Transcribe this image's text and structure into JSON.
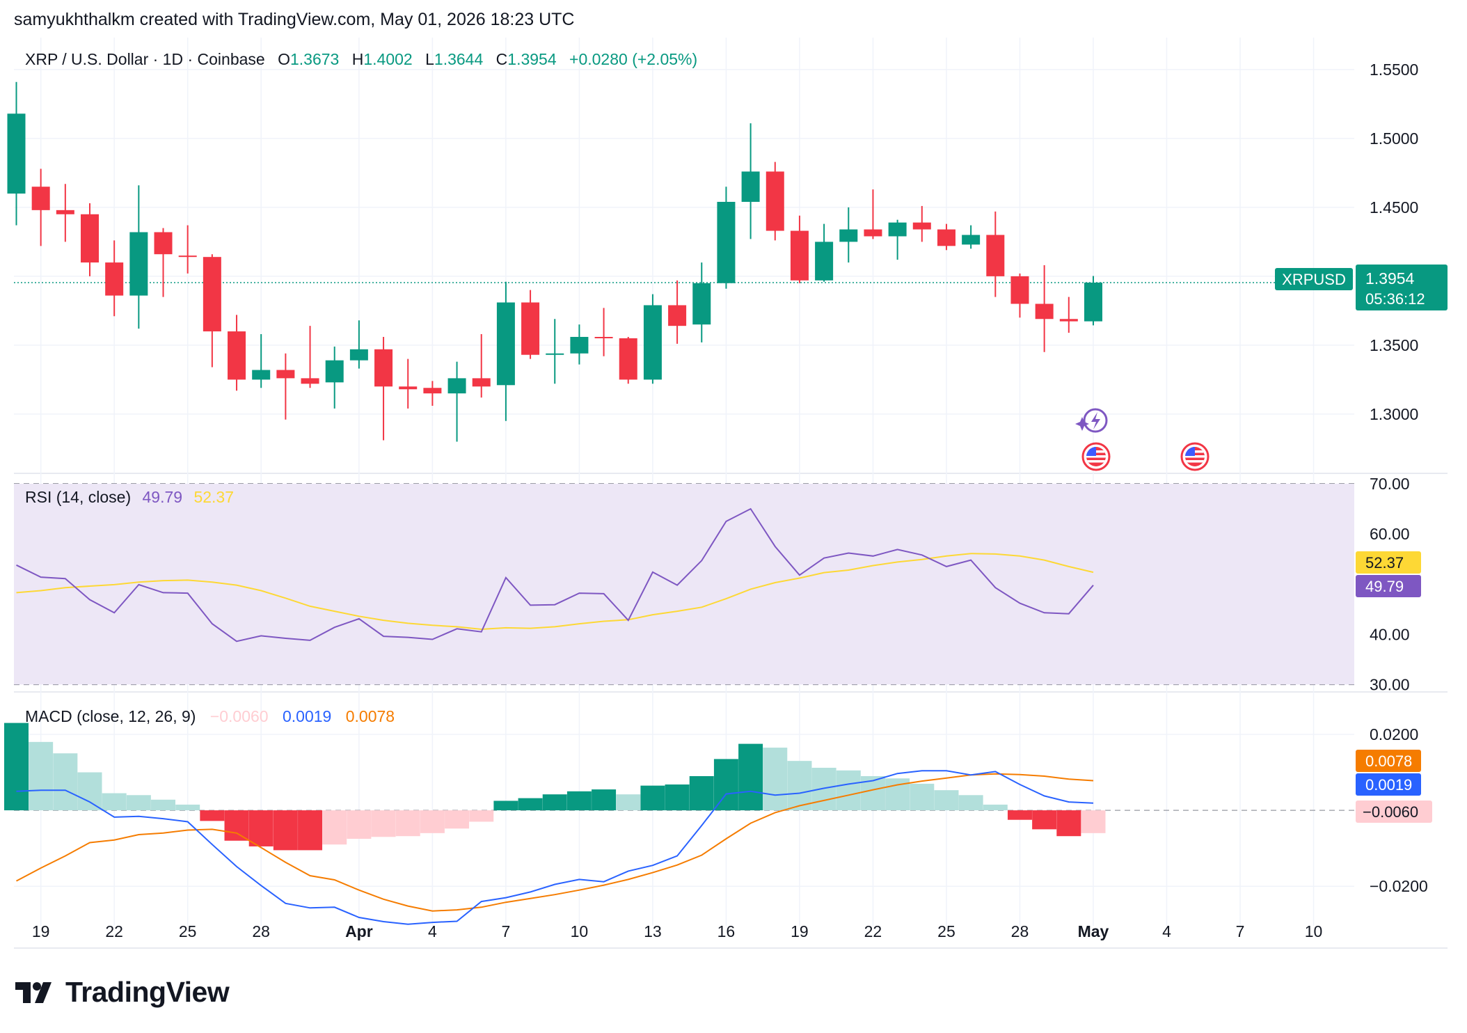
{
  "header": {
    "attribution": "samyukhthalkm created with TradingView.com, May 01, 2026 18:23 UTC"
  },
  "footer": {
    "brand": "TradingView"
  },
  "colors": {
    "up": "#089981",
    "down": "#f23645",
    "up_light": "#b2dfdb",
    "down_light": "#ffcdd2",
    "rsi": "#7e57c2",
    "rsi_ma": "#fdd835",
    "macd": "#2962ff",
    "signal": "#f57c00",
    "rsi_band": "#ede7f6"
  },
  "chart_data": {
    "type": "candlestick",
    "symbol_title": "XRP / U.S. Dollar · 1D · Coinbase",
    "ohlc_labels": {
      "o": "O",
      "h": "H",
      "l": "L",
      "c": "C"
    },
    "ohlc_values": {
      "o": "1.3673",
      "h": "1.4002",
      "l": "1.3644",
      "c": "1.3954",
      "change": "+0.0280 (+2.05%)"
    },
    "price_label": {
      "symbol": "XRPUSD",
      "price": "1.3954",
      "countdown": "05:36:12",
      "value": 1.3954
    },
    "price_axis": {
      "ticks": [
        "1.5500",
        "1.5000",
        "1.4500",
        "1.3500",
        "1.3000"
      ],
      "tick_values": [
        1.55,
        1.5,
        1.45,
        1.35,
        1.3
      ],
      "ylim": [
        1.258,
        1.5732
      ]
    },
    "x_axis": {
      "labels": [
        "19",
        "22",
        "25",
        "28",
        "Apr",
        "4",
        "7",
        "10",
        "13",
        "16",
        "19",
        "22",
        "25",
        "28",
        "May",
        "4",
        "7",
        "10"
      ],
      "label_index": [
        1,
        4,
        7,
        10,
        14,
        17,
        20,
        23,
        26,
        29,
        32,
        35,
        38,
        41,
        44,
        47,
        50,
        53
      ],
      "bold": [
        "Apr",
        "May"
      ]
    },
    "candles": [
      {
        "date": "03-18",
        "o": 1.46,
        "h": 1.541,
        "l": 1.437,
        "c": 1.518
      },
      {
        "date": "03-19",
        "o": 1.465,
        "h": 1.478,
        "l": 1.422,
        "c": 1.448
      },
      {
        "date": "03-20",
        "o": 1.448,
        "h": 1.467,
        "l": 1.425,
        "c": 1.445
      },
      {
        "date": "03-21",
        "o": 1.445,
        "h": 1.453,
        "l": 1.4,
        "c": 1.41
      },
      {
        "date": "03-22",
        "o": 1.41,
        "h": 1.426,
        "l": 1.371,
        "c": 1.386
      },
      {
        "date": "03-23",
        "o": 1.386,
        "h": 1.466,
        "l": 1.362,
        "c": 1.432
      },
      {
        "date": "03-24",
        "o": 1.432,
        "h": 1.435,
        "l": 1.385,
        "c": 1.416
      },
      {
        "date": "03-25",
        "o": 1.415,
        "h": 1.437,
        "l": 1.402,
        "c": 1.414
      },
      {
        "date": "03-26",
        "o": 1.414,
        "h": 1.416,
        "l": 1.334,
        "c": 1.36
      },
      {
        "date": "03-27",
        "o": 1.36,
        "h": 1.372,
        "l": 1.317,
        "c": 1.325
      },
      {
        "date": "03-28",
        "o": 1.325,
        "h": 1.358,
        "l": 1.319,
        "c": 1.332
      },
      {
        "date": "03-29",
        "o": 1.332,
        "h": 1.344,
        "l": 1.296,
        "c": 1.326
      },
      {
        "date": "03-30",
        "o": 1.326,
        "h": 1.364,
        "l": 1.319,
        "c": 1.322
      },
      {
        "date": "03-31",
        "o": 1.323,
        "h": 1.349,
        "l": 1.304,
        "c": 1.339
      },
      {
        "date": "04-01",
        "o": 1.339,
        "h": 1.368,
        "l": 1.333,
        "c": 1.347
      },
      {
        "date": "04-02",
        "o": 1.347,
        "h": 1.356,
        "l": 1.281,
        "c": 1.32
      },
      {
        "date": "04-03",
        "o": 1.32,
        "h": 1.34,
        "l": 1.304,
        "c": 1.318
      },
      {
        "date": "04-04",
        "o": 1.319,
        "h": 1.324,
        "l": 1.306,
        "c": 1.315
      },
      {
        "date": "04-05",
        "o": 1.315,
        "h": 1.338,
        "l": 1.28,
        "c": 1.326
      },
      {
        "date": "04-06",
        "o": 1.326,
        "h": 1.358,
        "l": 1.312,
        "c": 1.32
      },
      {
        "date": "04-07",
        "o": 1.321,
        "h": 1.396,
        "l": 1.295,
        "c": 1.381
      },
      {
        "date": "04-08",
        "o": 1.381,
        "h": 1.39,
        "l": 1.34,
        "c": 1.343
      },
      {
        "date": "04-09",
        "o": 1.343,
        "h": 1.369,
        "l": 1.322,
        "c": 1.344
      },
      {
        "date": "04-10",
        "o": 1.344,
        "h": 1.365,
        "l": 1.336,
        "c": 1.356
      },
      {
        "date": "04-11",
        "o": 1.356,
        "h": 1.377,
        "l": 1.342,
        "c": 1.355
      },
      {
        "date": "04-12",
        "o": 1.355,
        "h": 1.356,
        "l": 1.322,
        "c": 1.325
      },
      {
        "date": "04-13",
        "o": 1.325,
        "h": 1.387,
        "l": 1.322,
        "c": 1.379
      },
      {
        "date": "04-14",
        "o": 1.379,
        "h": 1.397,
        "l": 1.351,
        "c": 1.364
      },
      {
        "date": "04-15",
        "o": 1.365,
        "h": 1.41,
        "l": 1.352,
        "c": 1.395
      },
      {
        "date": "04-16",
        "o": 1.395,
        "h": 1.465,
        "l": 1.391,
        "c": 1.454
      },
      {
        "date": "04-17",
        "o": 1.454,
        "h": 1.511,
        "l": 1.427,
        "c": 1.476
      },
      {
        "date": "04-18",
        "o": 1.476,
        "h": 1.483,
        "l": 1.426,
        "c": 1.433
      },
      {
        "date": "04-19",
        "o": 1.433,
        "h": 1.444,
        "l": 1.395,
        "c": 1.397
      },
      {
        "date": "04-20",
        "o": 1.397,
        "h": 1.438,
        "l": 1.396,
        "c": 1.425
      },
      {
        "date": "04-21",
        "o": 1.425,
        "h": 1.45,
        "l": 1.41,
        "c": 1.434
      },
      {
        "date": "04-22",
        "o": 1.434,
        "h": 1.463,
        "l": 1.427,
        "c": 1.429
      },
      {
        "date": "04-23",
        "o": 1.429,
        "h": 1.441,
        "l": 1.412,
        "c": 1.439
      },
      {
        "date": "04-24",
        "o": 1.439,
        "h": 1.451,
        "l": 1.425,
        "c": 1.434
      },
      {
        "date": "04-25",
        "o": 1.434,
        "h": 1.438,
        "l": 1.419,
        "c": 1.422
      },
      {
        "date": "04-26",
        "o": 1.423,
        "h": 1.437,
        "l": 1.42,
        "c": 1.43
      },
      {
        "date": "04-27",
        "o": 1.43,
        "h": 1.447,
        "l": 1.385,
        "c": 1.4
      },
      {
        "date": "04-28",
        "o": 1.4,
        "h": 1.402,
        "l": 1.37,
        "c": 1.38
      },
      {
        "date": "04-29",
        "o": 1.38,
        "h": 1.408,
        "l": 1.345,
        "c": 1.369
      },
      {
        "date": "04-30",
        "o": 1.369,
        "h": 1.385,
        "l": 1.359,
        "c": 1.3673
      },
      {
        "date": "05-01",
        "o": 1.3673,
        "h": 1.4002,
        "l": 1.3644,
        "c": 1.3954
      }
    ],
    "rsi": {
      "title": "RSI (14, close)",
      "value": "49.79",
      "ma_value": "52.37",
      "ticks": [
        "70.00",
        "60.00",
        "40.00",
        "30.00"
      ],
      "tick_values": [
        70,
        60,
        40,
        30
      ],
      "band": [
        30,
        70
      ],
      "mid": 50,
      "ylim": [
        28.8,
        71.8
      ],
      "values": [
        53.8,
        51.4,
        51.1,
        46.9,
        44.3,
        49.9,
        48.3,
        48.2,
        42.1,
        38.6,
        39.7,
        39.2,
        38.8,
        41.4,
        43.1,
        39.6,
        39.4,
        39.0,
        41.1,
        40.5,
        51.3,
        45.8,
        45.9,
        48.2,
        48.1,
        42.8,
        52.4,
        49.8,
        54.7,
        62.5,
        65.0,
        57.5,
        51.8,
        55.2,
        56.2,
        55.6,
        56.9,
        55.8,
        53.5,
        54.8,
        49.3,
        46.2,
        44.3,
        44.1,
        49.79
      ],
      "ma_values": [
        48.3,
        48.7,
        49.3,
        49.6,
        49.9,
        50.4,
        50.7,
        50.8,
        50.4,
        49.8,
        48.7,
        47.2,
        45.6,
        44.6,
        43.6,
        42.8,
        42.2,
        41.8,
        41.5,
        41.0,
        41.3,
        41.2,
        41.5,
        42.1,
        42.6,
        42.9,
        43.9,
        44.6,
        45.4,
        47.1,
        49.0,
        50.3,
        51.2,
        52.3,
        52.8,
        53.7,
        54.4,
        54.9,
        55.6,
        56.1,
        56.0,
        55.6,
        54.8,
        53.5,
        52.37
      ]
    },
    "macd": {
      "title": "MACD (close, 12, 26, 9)",
      "hist_value": "−0.0060",
      "macd_value": "0.0019",
      "signal_value": "0.0078",
      "ticks": [
        "0.0200",
        "−0.0200"
      ],
      "tick_values": [
        0.02,
        -0.02
      ],
      "ylim": [
        -0.0304,
        0.0308
      ],
      "hist": [
        0.023,
        0.018,
        0.015,
        0.01,
        0.0045,
        0.004,
        0.0028,
        0.0015,
        -0.0028,
        -0.008,
        -0.0095,
        -0.0105,
        -0.0105,
        -0.009,
        -0.0075,
        -0.007,
        -0.0068,
        -0.006,
        -0.0048,
        -0.003,
        0.0025,
        0.0032,
        0.0042,
        0.005,
        0.0055,
        0.0042,
        0.0065,
        0.0068,
        0.009,
        0.0135,
        0.0175,
        0.0165,
        0.013,
        0.0112,
        0.0105,
        0.009,
        0.0084,
        0.007,
        0.0053,
        0.004,
        0.0015,
        -0.0025,
        -0.005,
        -0.0068,
        -0.006
      ],
      "macd": [
        0.005,
        0.0053,
        0.0053,
        0.0022,
        -0.0018,
        -0.0016,
        -0.0022,
        -0.003,
        -0.009,
        -0.0148,
        -0.0198,
        -0.0245,
        -0.0257,
        -0.0255,
        -0.0282,
        -0.0293,
        -0.03,
        -0.0295,
        -0.0292,
        -0.024,
        -0.023,
        -0.0215,
        -0.0195,
        -0.0182,
        -0.0188,
        -0.016,
        -0.0145,
        -0.012,
        -0.004,
        0.0043,
        0.005,
        0.004,
        0.0045,
        0.0058,
        0.0069,
        0.0078,
        0.0097,
        0.0104,
        0.0104,
        0.0093,
        0.0102,
        0.0068,
        0.0038,
        0.0022,
        0.0019
      ],
      "signal": [
        -0.0186,
        -0.0152,
        -0.012,
        -0.0085,
        -0.0078,
        -0.0064,
        -0.006,
        -0.0052,
        -0.005,
        -0.006,
        -0.0098,
        -0.0137,
        -0.0172,
        -0.0183,
        -0.021,
        -0.0234,
        -0.0252,
        -0.0265,
        -0.0262,
        -0.0255,
        -0.0242,
        -0.0232,
        -0.0222,
        -0.021,
        -0.0197,
        -0.0182,
        -0.0164,
        -0.0144,
        -0.0118,
        -0.0075,
        -0.0034,
        -0.0006,
        0.0012,
        0.0026,
        0.004,
        0.0054,
        0.0067,
        0.0077,
        0.0085,
        0.0093,
        0.0096,
        0.0094,
        0.009,
        0.0082,
        0.0078
      ]
    }
  }
}
